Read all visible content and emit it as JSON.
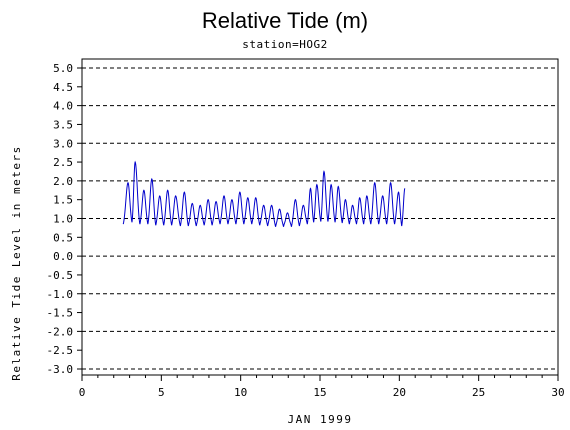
{
  "chart_data": {
    "type": "line",
    "title": "Relative Tide (m)",
    "subtitle": "station=HOG2",
    "xlabel": "JAN 1999",
    "ylabel": "Relative Tide Level in meters",
    "xlim": [
      0,
      30
    ],
    "ylim": [
      -3.0,
      5.0
    ],
    "x_ticks": [
      "0",
      "5",
      "10",
      "15",
      "20",
      "25",
      "30"
    ],
    "y_ticks": [
      "5.0",
      "4.5",
      "4.0",
      "3.5",
      "3.0",
      "2.5",
      "2.0",
      "1.5",
      "1.0",
      "0.5",
      "0.0",
      "-0.5",
      "-1.0",
      "-1.5",
      "-2.0",
      "-2.5",
      "-3.0"
    ],
    "y_gridlines": [
      5.0,
      4.0,
      3.0,
      2.0,
      1.0,
      0.0,
      -1.0,
      -2.0,
      -3.0
    ],
    "grid": "horizontal dashed at whole meters",
    "series_color": "#0000cc",
    "series": [
      {
        "x_start": 2.6,
        "x_end": 20.4,
        "highs": [
          [
            2.9,
            1.95
          ],
          [
            3.35,
            2.5
          ],
          [
            3.9,
            1.75
          ],
          [
            4.4,
            2.05
          ],
          [
            4.9,
            1.6
          ],
          [
            5.4,
            1.75
          ],
          [
            5.9,
            1.6
          ],
          [
            6.45,
            1.7
          ],
          [
            6.95,
            1.4
          ],
          [
            7.45,
            1.35
          ],
          [
            7.95,
            1.5
          ],
          [
            8.45,
            1.45
          ],
          [
            8.95,
            1.6
          ],
          [
            9.45,
            1.5
          ],
          [
            9.95,
            1.7
          ],
          [
            10.45,
            1.55
          ],
          [
            10.95,
            1.55
          ],
          [
            11.45,
            1.35
          ],
          [
            11.95,
            1.35
          ],
          [
            12.45,
            1.25
          ],
          [
            12.95,
            1.15
          ],
          [
            13.45,
            1.5
          ],
          [
            13.95,
            1.35
          ],
          [
            14.4,
            1.8
          ],
          [
            14.8,
            1.9
          ],
          [
            15.25,
            2.25
          ],
          [
            15.7,
            1.9
          ],
          [
            16.15,
            1.85
          ],
          [
            16.6,
            1.5
          ],
          [
            17.05,
            1.35
          ],
          [
            17.5,
            1.55
          ],
          [
            17.95,
            1.6
          ],
          [
            18.45,
            1.95
          ],
          [
            18.95,
            1.6
          ],
          [
            19.45,
            1.95
          ],
          [
            19.95,
            1.7
          ],
          [
            20.35,
            1.8
          ]
        ],
        "lows": [
          [
            2.6,
            0.85
          ],
          [
            3.15,
            0.9
          ],
          [
            3.65,
            0.85
          ],
          [
            4.15,
            0.85
          ],
          [
            4.65,
            0.82
          ],
          [
            5.15,
            0.82
          ],
          [
            5.65,
            0.82
          ],
          [
            6.2,
            0.8
          ],
          [
            6.7,
            0.8
          ],
          [
            7.2,
            0.8
          ],
          [
            7.7,
            0.82
          ],
          [
            8.2,
            0.82
          ],
          [
            8.7,
            0.85
          ],
          [
            9.2,
            0.85
          ],
          [
            9.7,
            0.85
          ],
          [
            10.2,
            0.85
          ],
          [
            10.7,
            0.85
          ],
          [
            11.2,
            0.82
          ],
          [
            11.7,
            0.8
          ],
          [
            12.2,
            0.78
          ],
          [
            12.7,
            0.78
          ],
          [
            13.2,
            0.78
          ],
          [
            13.7,
            0.8
          ],
          [
            14.2,
            0.85
          ],
          [
            14.6,
            0.9
          ],
          [
            15.05,
            0.92
          ],
          [
            15.5,
            0.92
          ],
          [
            15.95,
            0.9
          ],
          [
            16.4,
            0.88
          ],
          [
            16.85,
            0.85
          ],
          [
            17.3,
            0.85
          ],
          [
            17.75,
            0.85
          ],
          [
            18.2,
            0.85
          ],
          [
            18.7,
            0.85
          ],
          [
            19.2,
            0.85
          ],
          [
            19.7,
            0.85
          ],
          [
            20.15,
            0.8
          ]
        ]
      }
    ]
  }
}
